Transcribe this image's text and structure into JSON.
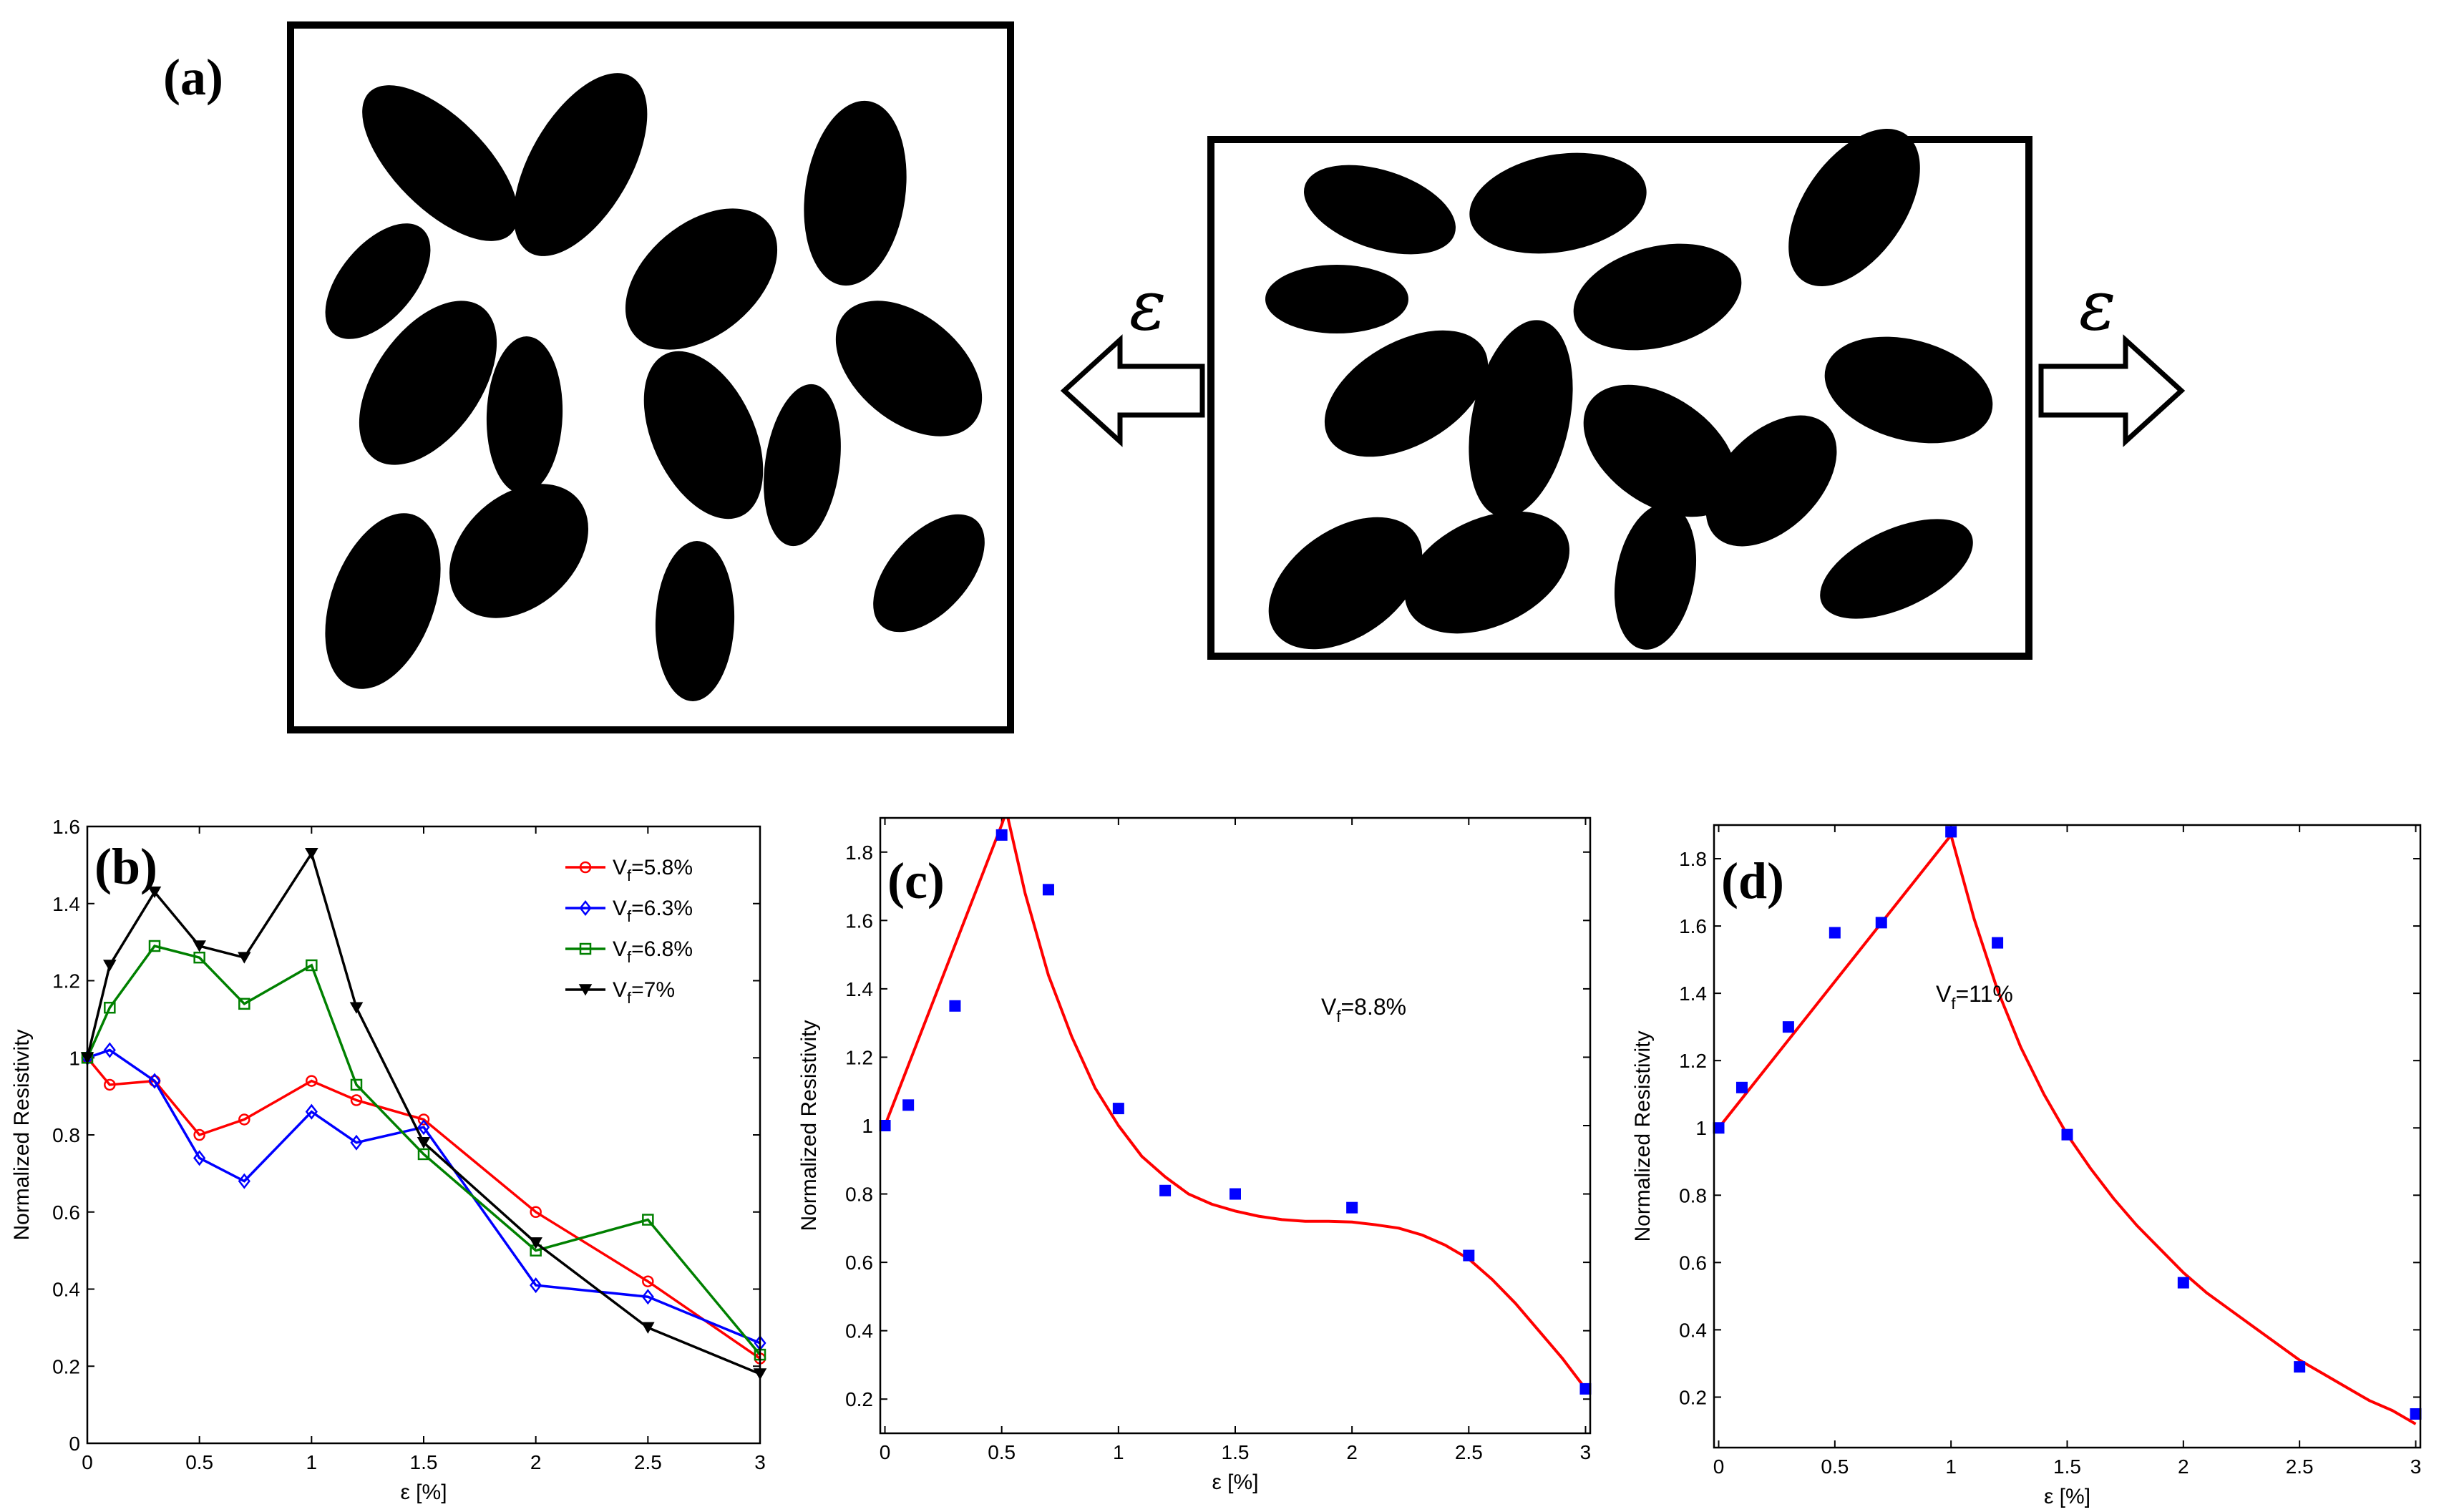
{
  "panel_a": {
    "label": "(a)",
    "strain_symbol_left": "ε",
    "strain_symbol_right": "ε"
  },
  "chart_data": [
    {
      "id": "b",
      "panel_label": "(b)",
      "type": "line",
      "xlabel": "ε [%]",
      "ylabel": "Normalized Resistivity",
      "xlim": [
        0,
        3
      ],
      "ylim": [
        0,
        1.6
      ],
      "xticks": [
        0,
        0.5,
        1,
        1.5,
        2,
        2.5,
        3
      ],
      "xtick_labels": [
        "0",
        "0.5",
        "1",
        "1.5",
        "2",
        "2.5",
        "3"
      ],
      "yticks": [
        0,
        0.2,
        0.4,
        0.6,
        0.8,
        1,
        1.2,
        1.4,
        1.6
      ],
      "ytick_labels": [
        "0",
        "0.2",
        "0.4",
        "0.6",
        "0.8",
        "1",
        "1.2",
        "1.4",
        "1.6"
      ],
      "legend_position": "top-right",
      "series": [
        {
          "name_main": "V",
          "name_sub": "f",
          "name_rest": "=5.8%",
          "color": "#ff0000",
          "marker": "circle",
          "x": [
            0,
            0.1,
            0.3,
            0.5,
            0.7,
            1,
            1.2,
            1.5,
            2,
            2.5,
            3
          ],
          "y": [
            1.0,
            0.93,
            0.94,
            0.8,
            0.84,
            0.94,
            0.89,
            0.84,
            0.6,
            0.42,
            0.22
          ]
        },
        {
          "name_main": "V",
          "name_sub": "f",
          "name_rest": "=6.3%",
          "color": "#0000ff",
          "marker": "diamond",
          "x": [
            0,
            0.1,
            0.3,
            0.5,
            0.7,
            1,
            1.2,
            1.5,
            2,
            2.5,
            3
          ],
          "y": [
            1.0,
            1.02,
            0.94,
            0.74,
            0.68,
            0.86,
            0.78,
            0.82,
            0.41,
            0.38,
            0.26
          ]
        },
        {
          "name_main": "V",
          "name_sub": "f",
          "name_rest": "=6.8%",
          "color": "#008000",
          "marker": "square",
          "x": [
            0,
            0.1,
            0.3,
            0.5,
            0.7,
            1,
            1.2,
            1.5,
            2,
            2.5,
            3
          ],
          "y": [
            1.0,
            1.13,
            1.29,
            1.26,
            1.14,
            1.24,
            0.93,
            0.75,
            0.5,
            0.58,
            0.23
          ]
        },
        {
          "name_main": "V",
          "name_sub": "f",
          "name_rest": "=7%",
          "color": "#000000",
          "marker": "triangle-down",
          "x": [
            0,
            0.1,
            0.3,
            0.5,
            0.7,
            1,
            1.2,
            1.5,
            2,
            2.5,
            3
          ],
          "y": [
            1.0,
            1.24,
            1.43,
            1.29,
            1.26,
            1.53,
            1.13,
            0.78,
            0.52,
            0.3,
            0.18
          ]
        }
      ]
    },
    {
      "id": "c",
      "panel_label": "(c)",
      "type": "scatter",
      "xlabel": "ε [%]",
      "ylabel": "Normalized Resistivity",
      "xlim": [
        -0.02,
        3.02
      ],
      "ylim": [
        0.1,
        1.9
      ],
      "xticks": [
        0,
        0.5,
        1,
        1.5,
        2,
        2.5,
        3
      ],
      "xtick_labels": [
        "0",
        "0.5",
        "1",
        "1.5",
        "2",
        "2.5",
        "3"
      ],
      "yticks": [
        0.2,
        0.4,
        0.6,
        0.8,
        1,
        1.2,
        1.4,
        1.6,
        1.8
      ],
      "ytick_labels": [
        "0.2",
        "0.4",
        "0.6",
        "0.8",
        "1",
        "1.2",
        "1.4",
        "1.6",
        "1.8"
      ],
      "annotation_main": "V",
      "annotation_sub": "f",
      "annotation_rest": "=8.8%",
      "points": {
        "color": "#0000ff",
        "x": [
          0,
          0.1,
          0.3,
          0.5,
          0.7,
          1,
          1.2,
          1.5,
          2,
          2.5,
          3
        ],
        "y": [
          1.0,
          1.06,
          1.35,
          1.85,
          1.69,
          1.05,
          0.81,
          0.8,
          0.76,
          0.62,
          0.23
        ]
      },
      "fit": {
        "color": "#ff0000",
        "x": [
          0,
          0.5,
          0.52,
          0.6,
          0.7,
          0.8,
          0.9,
          1.0,
          1.1,
          1.2,
          1.3,
          1.4,
          1.5,
          1.6,
          1.7,
          1.8,
          1.9,
          2.0,
          2.1,
          2.2,
          2.3,
          2.4,
          2.5,
          2.6,
          2.7,
          2.8,
          2.9,
          3.0
        ],
        "y": [
          1.0,
          1.88,
          1.92,
          1.68,
          1.44,
          1.26,
          1.11,
          1.0,
          0.91,
          0.85,
          0.8,
          0.77,
          0.75,
          0.735,
          0.725,
          0.72,
          0.72,
          0.718,
          0.71,
          0.7,
          0.68,
          0.65,
          0.61,
          0.55,
          0.48,
          0.4,
          0.32,
          0.23
        ]
      }
    },
    {
      "id": "d",
      "panel_label": "(d)",
      "type": "scatter",
      "xlabel": "ε [%]",
      "ylabel": "Normalized Resistivity",
      "xlim": [
        -0.02,
        3.02
      ],
      "ylim": [
        0.05,
        1.9
      ],
      "xticks": [
        0,
        0.5,
        1,
        1.5,
        2,
        2.5,
        3
      ],
      "xtick_labels": [
        "0",
        "0.5",
        "1",
        "1.5",
        "2",
        "2.5",
        "3"
      ],
      "yticks": [
        0.2,
        0.4,
        0.6,
        0.8,
        1,
        1.2,
        1.4,
        1.6,
        1.8
      ],
      "ytick_labels": [
        "0.2",
        "0.4",
        "0.6",
        "0.8",
        "1",
        "1.2",
        "1.4",
        "1.6",
        "1.8"
      ],
      "annotation_main": "V",
      "annotation_sub": "f",
      "annotation_rest": "=11%",
      "points": {
        "color": "#0000ff",
        "x": [
          0,
          0.1,
          0.3,
          0.5,
          0.7,
          1,
          1.2,
          1.5,
          2,
          2.5,
          3
        ],
        "y": [
          1.0,
          1.12,
          1.3,
          1.58,
          1.61,
          1.88,
          1.55,
          0.98,
          0.54,
          0.29,
          0.15
        ]
      },
      "fit": {
        "color": "#ff0000",
        "x": [
          0,
          1.0,
          1.1,
          1.2,
          1.3,
          1.4,
          1.5,
          1.6,
          1.7,
          1.8,
          1.9,
          2.0,
          2.1,
          2.2,
          2.3,
          2.4,
          2.5,
          2.6,
          2.7,
          2.8,
          2.9,
          3.0
        ],
        "y": [
          1.0,
          1.87,
          1.62,
          1.41,
          1.24,
          1.1,
          0.98,
          0.88,
          0.79,
          0.71,
          0.64,
          0.57,
          0.51,
          0.46,
          0.41,
          0.36,
          0.31,
          0.27,
          0.23,
          0.19,
          0.16,
          0.12
        ]
      }
    }
  ]
}
